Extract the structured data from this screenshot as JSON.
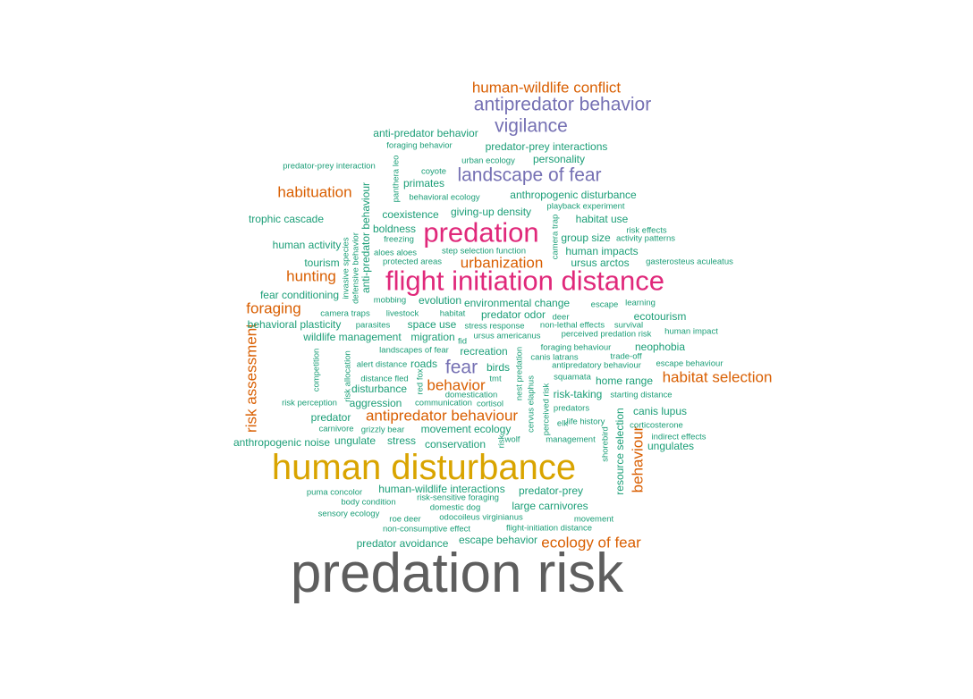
{
  "palette": {
    "xl": "#5e5e5e",
    "l": "#d9a400",
    "m": "#e0287a",
    "s": "#7570b3",
    "xs": "#d95f02",
    "t": "#1b9e77"
  },
  "words": [
    {
      "text": "predation risk",
      "size": "xl"
    },
    {
      "text": "human disturbance",
      "size": "l"
    },
    {
      "text": "flight initiation distance",
      "size": "m"
    },
    {
      "text": "predation",
      "size": "m"
    },
    {
      "text": "vigilance",
      "size": "s"
    },
    {
      "text": "antipredator behavior",
      "size": "s"
    },
    {
      "text": "landscape of fear",
      "size": "s"
    },
    {
      "text": "fear",
      "size": "s"
    },
    {
      "text": "human-wildlife conflict",
      "size": "xs"
    },
    {
      "text": "habituation",
      "size": "xs"
    },
    {
      "text": "hunting",
      "size": "xs"
    },
    {
      "text": "urbanization",
      "size": "xs"
    },
    {
      "text": "habitat selection",
      "size": "xs"
    },
    {
      "text": "behavior",
      "size": "xs"
    },
    {
      "text": "antipredator behaviour",
      "size": "xs"
    },
    {
      "text": "ecology of fear",
      "size": "xs"
    },
    {
      "text": "foraging",
      "size": "xs"
    },
    {
      "text": "risk assessment",
      "size": "xs"
    },
    {
      "text": "behaviour",
      "size": "xs"
    },
    {
      "text": "anti-predator behavior",
      "size": "t"
    },
    {
      "text": "foraging behavior",
      "size": "t"
    },
    {
      "text": "predator-prey interactions",
      "size": "t"
    },
    {
      "text": "predator-prey interaction",
      "size": "t"
    },
    {
      "text": "urban ecology",
      "size": "t"
    },
    {
      "text": "personality",
      "size": "t"
    },
    {
      "text": "coyote",
      "size": "t"
    },
    {
      "text": "primates",
      "size": "t"
    },
    {
      "text": "panthera leo",
      "size": "t"
    },
    {
      "text": "behavioral ecology",
      "size": "t"
    },
    {
      "text": "anthropogenic disturbance",
      "size": "t"
    },
    {
      "text": "playback experiment",
      "size": "t"
    },
    {
      "text": "trophic cascade",
      "size": "t"
    },
    {
      "text": "coexistence",
      "size": "t"
    },
    {
      "text": "giving-up density",
      "size": "t"
    },
    {
      "text": "habitat use",
      "size": "t"
    },
    {
      "text": "boldness",
      "size": "t"
    },
    {
      "text": "risk effects",
      "size": "t"
    },
    {
      "text": "freezing",
      "size": "t"
    },
    {
      "text": "group size",
      "size": "t"
    },
    {
      "text": "activity patterns",
      "size": "t"
    },
    {
      "text": "human activity",
      "size": "t"
    },
    {
      "text": "step selection function",
      "size": "t"
    },
    {
      "text": "human impacts",
      "size": "t"
    },
    {
      "text": "aloes aloes",
      "size": "t"
    },
    {
      "text": "tourism",
      "size": "t"
    },
    {
      "text": "protected areas",
      "size": "t"
    },
    {
      "text": "ursus arctos",
      "size": "t"
    },
    {
      "text": "gasterosteus aculeatus",
      "size": "t"
    },
    {
      "text": "camera trap",
      "size": "t"
    },
    {
      "text": "anti-predator behaviour",
      "size": "t"
    },
    {
      "text": "defensive behavior",
      "size": "t"
    },
    {
      "text": "invasive species",
      "size": "t"
    },
    {
      "text": "fear conditioning",
      "size": "t"
    },
    {
      "text": "mobbing",
      "size": "t"
    },
    {
      "text": "evolution",
      "size": "t"
    },
    {
      "text": "environmental change",
      "size": "t"
    },
    {
      "text": "escape",
      "size": "t"
    },
    {
      "text": "learning",
      "size": "t"
    },
    {
      "text": "camera traps",
      "size": "t"
    },
    {
      "text": "livestock",
      "size": "t"
    },
    {
      "text": "habitat",
      "size": "t"
    },
    {
      "text": "predator odor",
      "size": "t"
    },
    {
      "text": "deer",
      "size": "t"
    },
    {
      "text": "ecotourism",
      "size": "t"
    },
    {
      "text": "behavioral plasticity",
      "size": "t"
    },
    {
      "text": "parasites",
      "size": "t"
    },
    {
      "text": "space use",
      "size": "t"
    },
    {
      "text": "stress response",
      "size": "t"
    },
    {
      "text": "non-lethal effects",
      "size": "t"
    },
    {
      "text": "survival",
      "size": "t"
    },
    {
      "text": "wildlife management",
      "size": "t"
    },
    {
      "text": "migration",
      "size": "t"
    },
    {
      "text": "ursus americanus",
      "size": "t"
    },
    {
      "text": "perceived predation risk",
      "size": "t"
    },
    {
      "text": "human impact",
      "size": "t"
    },
    {
      "text": "fid",
      "size": "t"
    },
    {
      "text": "landscapes of fear",
      "size": "t"
    },
    {
      "text": "recreation",
      "size": "t"
    },
    {
      "text": "foraging behaviour",
      "size": "t"
    },
    {
      "text": "neophobia",
      "size": "t"
    },
    {
      "text": "competition",
      "size": "t"
    },
    {
      "text": "risk allocation",
      "size": "t"
    },
    {
      "text": "alert distance",
      "size": "t"
    },
    {
      "text": "roads",
      "size": "t"
    },
    {
      "text": "birds",
      "size": "t"
    },
    {
      "text": "canis latrans",
      "size": "t"
    },
    {
      "text": "trade-off",
      "size": "t"
    },
    {
      "text": "antipredatory behaviour",
      "size": "t"
    },
    {
      "text": "escape behaviour",
      "size": "t"
    },
    {
      "text": "distance fled",
      "size": "t"
    },
    {
      "text": "red fox",
      "size": "t"
    },
    {
      "text": "tmt",
      "size": "t"
    },
    {
      "text": "squamata",
      "size": "t"
    },
    {
      "text": "home range",
      "size": "t"
    },
    {
      "text": "nest predation",
      "size": "t"
    },
    {
      "text": "disturbance",
      "size": "t"
    },
    {
      "text": "domestication",
      "size": "t"
    },
    {
      "text": "risk-taking",
      "size": "t"
    },
    {
      "text": "starting distance",
      "size": "t"
    },
    {
      "text": "risk perception",
      "size": "t"
    },
    {
      "text": "aggression",
      "size": "t"
    },
    {
      "text": "communication",
      "size": "t"
    },
    {
      "text": "cortisol",
      "size": "t"
    },
    {
      "text": "predators",
      "size": "t"
    },
    {
      "text": "predator",
      "size": "t"
    },
    {
      "text": "cervus elaphus",
      "size": "t"
    },
    {
      "text": "perceived risk",
      "size": "t"
    },
    {
      "text": "canis lupus",
      "size": "t"
    },
    {
      "text": "life history",
      "size": "t"
    },
    {
      "text": "elk",
      "size": "t"
    },
    {
      "text": "corticosterone",
      "size": "t"
    },
    {
      "text": "carnivore",
      "size": "t"
    },
    {
      "text": "grizzly bear",
      "size": "t"
    },
    {
      "text": "movement ecology",
      "size": "t"
    },
    {
      "text": "indirect effects",
      "size": "t"
    },
    {
      "text": "anthropogenic noise",
      "size": "t"
    },
    {
      "text": "ungulate",
      "size": "t"
    },
    {
      "text": "stress",
      "size": "t"
    },
    {
      "text": "conservation",
      "size": "t"
    },
    {
      "text": "wolf",
      "size": "t"
    },
    {
      "text": "management",
      "size": "t"
    },
    {
      "text": "ungulates",
      "size": "t"
    },
    {
      "text": "shorebird",
      "size": "t"
    },
    {
      "text": "resource selection",
      "size": "t"
    },
    {
      "text": "puma concolor",
      "size": "t"
    },
    {
      "text": "human-wildlife interactions",
      "size": "t"
    },
    {
      "text": "predator-prey",
      "size": "t"
    },
    {
      "text": "risk-sensitive foraging",
      "size": "t"
    },
    {
      "text": "body condition",
      "size": "t"
    },
    {
      "text": "domestic dog",
      "size": "t"
    },
    {
      "text": "large carnivores",
      "size": "t"
    },
    {
      "text": "sensory ecology",
      "size": "t"
    },
    {
      "text": "roe deer",
      "size": "t"
    },
    {
      "text": "odocoileus virginianus",
      "size": "t"
    },
    {
      "text": "movement",
      "size": "t"
    },
    {
      "text": "non-consumptive effect",
      "size": "t"
    },
    {
      "text": "flight-initiation distance",
      "size": "t"
    },
    {
      "text": "predator avoidance",
      "size": "t"
    },
    {
      "text": "escape behavior",
      "size": "t"
    },
    {
      "text": "risk",
      "size": "t"
    }
  ]
}
